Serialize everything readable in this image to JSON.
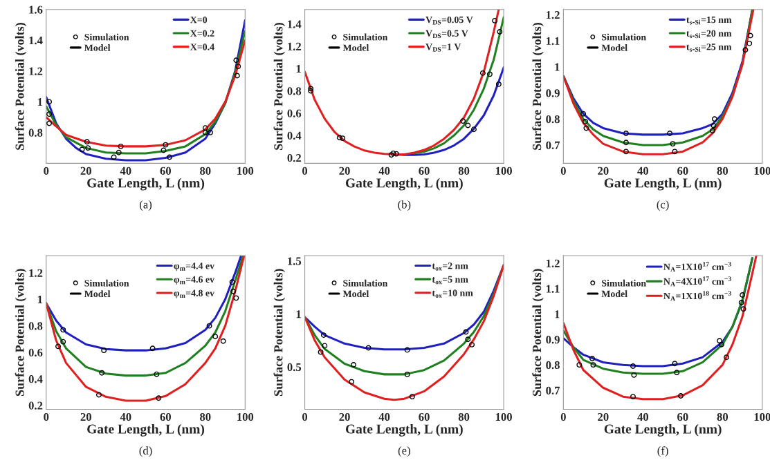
{
  "chart_data": [
    {
      "type": "line",
      "title": "(a)",
      "xlabel": "Gate Length, L (nm)",
      "ylabel": "Surface Potential (volts)",
      "xlim": [
        0,
        100
      ],
      "xticks": [
        0,
        20,
        40,
        60,
        80,
        100
      ],
      "ylim": [
        0.6,
        1.6
      ],
      "yticks": [
        0.8,
        1,
        1.2,
        1.4,
        1.6
      ],
      "grid": false,
      "legend": "top",
      "annotations": [
        "Model"
      ],
      "series": [
        {
          "name": "X=0",
          "marker": "none",
          "color": "#2020c0",
          "x": [
            0,
            5,
            10,
            15,
            20,
            30,
            40,
            50,
            60,
            70,
            80,
            85,
            90,
            95,
            100
          ],
          "values": [
            1.03,
            0.86,
            0.76,
            0.7,
            0.66,
            0.63,
            0.62,
            0.62,
            0.635,
            0.67,
            0.76,
            0.86,
            0.99,
            1.2,
            1.53
          ]
        },
        {
          "name": "X=0.2",
          "marker": "none",
          "color": "#208020",
          "x": [
            0,
            5,
            10,
            20,
            30,
            40,
            50,
            60,
            70,
            80,
            85,
            90,
            95,
            100
          ],
          "values": [
            0.97,
            0.85,
            0.77,
            0.7,
            0.67,
            0.665,
            0.665,
            0.68,
            0.71,
            0.79,
            0.87,
            0.99,
            1.19,
            1.46
          ]
        },
        {
          "name": "X=0.4",
          "marker": "none",
          "color": "#e02020",
          "x": [
            0,
            5,
            10,
            20,
            30,
            40,
            50,
            60,
            70,
            80,
            85,
            90,
            95,
            100
          ],
          "values": [
            0.9,
            0.84,
            0.785,
            0.74,
            0.715,
            0.71,
            0.71,
            0.72,
            0.75,
            0.82,
            0.89,
            1.0,
            1.17,
            1.4
          ]
        },
        {
          "name": "Simulation",
          "type": "scatter",
          "marker": "circle",
          "color": "#000000",
          "x": [
            1.5,
            1.5,
            1.5,
            18,
            21,
            20.5,
            34,
            36.5,
            37.5,
            59,
            60,
            62,
            80,
            80,
            82.5,
            95.5,
            96,
            96.5
          ],
          "values": [
            1.0,
            0.92,
            0.86,
            0.69,
            0.7,
            0.74,
            0.64,
            0.67,
            0.71,
            0.685,
            0.72,
            0.64,
            0.8,
            0.83,
            0.8,
            1.27,
            1.17,
            1.23
          ]
        }
      ]
    },
    {
      "type": "line",
      "title": "(b)",
      "xlabel": "Gate Length, L (nm)",
      "ylabel": "Surface Potential (volts)",
      "xlim": [
        0,
        100
      ],
      "xticks": [
        0,
        20,
        40,
        60,
        80,
        100
      ],
      "ylim": [
        0.15,
        1.53
      ],
      "yticks": [
        0.2,
        0.4,
        0.6,
        0.8,
        1,
        1.2,
        1.4
      ],
      "grid": false,
      "legend": "top",
      "annotations": [
        "Model"
      ],
      "series": [
        {
          "name": "V$_{DS}$=0.05 V",
          "marker": "none",
          "color": "#2020c0",
          "x": [
            45,
            50,
            55,
            60,
            65,
            70,
            75,
            80,
            85,
            90,
            95,
            100
          ],
          "values": [
            0.23,
            0.225,
            0.225,
            0.23,
            0.245,
            0.27,
            0.31,
            0.37,
            0.46,
            0.58,
            0.76,
            1.01
          ]
        },
        {
          "name": "V$_{DS}$=0.5 V",
          "marker": "none",
          "color": "#208020",
          "x": [
            55,
            60,
            65,
            70,
            75,
            80,
            85,
            90,
            95,
            100
          ],
          "values": [
            0.24,
            0.255,
            0.285,
            0.33,
            0.4,
            0.49,
            0.63,
            0.82,
            1.08,
            1.46
          ]
        },
        {
          "name": "V$_{DS}$=1 V",
          "marker": "none",
          "color": "#e02020",
          "x": [
            0,
            5,
            10,
            15,
            20,
            25,
            30,
            35,
            40,
            45,
            50,
            55,
            60,
            65,
            70,
            75,
            80,
            85,
            90,
            95,
            97.5
          ],
          "values": [
            0.97,
            0.72,
            0.55,
            0.43,
            0.35,
            0.3,
            0.265,
            0.245,
            0.235,
            0.23,
            0.23,
            0.245,
            0.27,
            0.31,
            0.37,
            0.45,
            0.56,
            0.73,
            0.97,
            1.33,
            1.53
          ]
        },
        {
          "name": "Simulation",
          "type": "scatter",
          "marker": "circle",
          "color": "#000000",
          "x": [
            3,
            3,
            17.5,
            19,
            43.5,
            44.5,
            46,
            79.5,
            82,
            85,
            89.5,
            93,
            95.5,
            98,
            97.5
          ],
          "values": [
            0.82,
            0.8,
            0.38,
            0.375,
            0.225,
            0.24,
            0.235,
            0.53,
            0.49,
            0.455,
            0.96,
            0.95,
            1.43,
            1.33,
            0.86
          ]
        }
      ]
    },
    {
      "type": "line",
      "title": "(c)",
      "xlabel": "Gate Length, L (nm)",
      "ylabel": "Surface Potential (volts)",
      "xlim": [
        0,
        100
      ],
      "xticks": [
        0,
        20,
        40,
        60,
        80,
        100
      ],
      "ylim": [
        0.63,
        1.22
      ],
      "yticks": [
        0.7,
        0.8,
        0.9,
        1,
        1.1,
        1.2
      ],
      "grid": false,
      "legend": "top",
      "annotations": [
        "Model"
      ],
      "series": [
        {
          "name": "t$_{s-Si}$=15 nm",
          "marker": "none",
          "color": "#2020c0",
          "x": [
            0,
            5,
            10,
            15,
            20,
            30,
            40,
            50,
            60,
            70,
            75,
            80,
            85,
            90,
            95
          ],
          "values": [
            0.965,
            0.88,
            0.82,
            0.785,
            0.765,
            0.745,
            0.74,
            0.74,
            0.745,
            0.765,
            0.78,
            0.82,
            0.9,
            1.02,
            1.22
          ]
        },
        {
          "name": "t$_{s-Si}$=20 nm",
          "marker": "none",
          "color": "#208020",
          "x": [
            0,
            5,
            10,
            15,
            20,
            30,
            40,
            50,
            60,
            70,
            75,
            80,
            85,
            90,
            95
          ],
          "values": [
            0.965,
            0.87,
            0.8,
            0.76,
            0.735,
            0.71,
            0.7,
            0.7,
            0.71,
            0.735,
            0.76,
            0.81,
            0.89,
            1.01,
            1.22
          ]
        },
        {
          "name": "t$_{s-Si}$=25 nm",
          "marker": "none",
          "color": "#e02020",
          "x": [
            0,
            5,
            10,
            15,
            20,
            30,
            40,
            50,
            60,
            70,
            75,
            80,
            85,
            90,
            95.5
          ],
          "values": [
            0.965,
            0.86,
            0.785,
            0.74,
            0.705,
            0.675,
            0.665,
            0.665,
            0.675,
            0.71,
            0.745,
            0.8,
            0.885,
            1.01,
            1.22
          ]
        },
        {
          "name": "Simulation",
          "type": "scatter",
          "marker": "circle",
          "color": "#000000",
          "x": [
            10,
            11,
            11.5,
            31.5,
            31.5,
            31.5,
            53.5,
            55,
            56,
            76,
            75.5,
            75,
            91.5,
            93.5,
            94
          ],
          "values": [
            0.82,
            0.79,
            0.765,
            0.745,
            0.71,
            0.675,
            0.745,
            0.705,
            0.675,
            0.8,
            0.775,
            0.755,
            1.065,
            1.09,
            1.12
          ]
        }
      ]
    },
    {
      "type": "line",
      "title": "(d)",
      "xlabel": "Gate Length, L (nm)",
      "ylabel": "Surface Potential (volts)",
      "xlim": [
        0,
        100
      ],
      "xticks": [
        0,
        20,
        40,
        60,
        80,
        100
      ],
      "ylim": [
        0.17,
        1.33
      ],
      "yticks": [
        0.2,
        0.4,
        0.6,
        0.8,
        1,
        1.2
      ],
      "grid": false,
      "legend": "top",
      "annotations": [
        "Model"
      ],
      "series": [
        {
          "name": "φ$_{m}$=4.4 ev",
          "marker": "none",
          "color": "#2020c0",
          "x": [
            0,
            5,
            10,
            20,
            30,
            40,
            50,
            60,
            70,
            80,
            85,
            90,
            95,
            98
          ],
          "values": [
            0.97,
            0.84,
            0.75,
            0.66,
            0.625,
            0.615,
            0.615,
            0.63,
            0.67,
            0.77,
            0.86,
            1.0,
            1.2,
            1.33
          ]
        },
        {
          "name": "φ$_{m}$=4.6 ev",
          "marker": "none",
          "color": "#208020",
          "x": [
            0,
            5,
            10,
            20,
            30,
            40,
            50,
            60,
            70,
            80,
            85,
            90,
            95,
            99
          ],
          "values": [
            0.97,
            0.76,
            0.63,
            0.49,
            0.44,
            0.425,
            0.425,
            0.445,
            0.52,
            0.65,
            0.75,
            0.91,
            1.14,
            1.33
          ]
        },
        {
          "name": "φ$_{m}$=4.8 ev",
          "marker": "none",
          "color": "#e02020",
          "x": [
            0,
            5,
            10,
            20,
            30,
            40,
            50,
            60,
            70,
            80,
            85,
            90,
            95,
            99.5
          ],
          "values": [
            0.97,
            0.69,
            0.52,
            0.34,
            0.265,
            0.235,
            0.235,
            0.27,
            0.36,
            0.52,
            0.63,
            0.8,
            1.06,
            1.33
          ]
        },
        {
          "name": "Simulation",
          "type": "scatter",
          "marker": "circle",
          "color": "#000000",
          "x": [
            6,
            8.5,
            8.5,
            26.5,
            28,
            29,
            53.5,
            55.5,
            56.5,
            82,
            85,
            89,
            93.5,
            94,
            95.5
          ],
          "values": [
            0.645,
            0.77,
            0.68,
            0.28,
            0.445,
            0.615,
            0.63,
            0.435,
            0.255,
            0.8,
            0.72,
            0.685,
            1.13,
            1.06,
            1.01
          ]
        }
      ]
    },
    {
      "type": "line",
      "title": "(e)",
      "xlabel": "Gate Length, L (nm)",
      "ylabel": "Surface Potential (volts)",
      "xlim": [
        0,
        100
      ],
      "xticks": [
        0,
        20,
        40,
        60,
        80,
        100
      ],
      "ylim": [
        0.1,
        1.55
      ],
      "yticks": [
        0.5,
        1,
        1.5
      ],
      "grid": false,
      "legend": "top",
      "annotations": [
        "Model"
      ],
      "series": [
        {
          "name": "t$_{ox}$=2 nm",
          "marker": "none",
          "color": "#2020c0",
          "x": [
            0,
            5,
            10,
            20,
            30,
            40,
            50,
            60,
            70,
            80,
            85,
            90,
            95,
            100
          ],
          "values": [
            0.97,
            0.88,
            0.8,
            0.72,
            0.68,
            0.665,
            0.665,
            0.68,
            0.72,
            0.82,
            0.9,
            1.02,
            1.22,
            1.46
          ]
        },
        {
          "name": "t$_{ox}$=5 nm",
          "marker": "none",
          "color": "#208020",
          "x": [
            0,
            5,
            10,
            20,
            30,
            40,
            50,
            60,
            70,
            80,
            85,
            90,
            95,
            100
          ],
          "values": [
            0.97,
            0.8,
            0.67,
            0.53,
            0.46,
            0.43,
            0.43,
            0.47,
            0.56,
            0.72,
            0.83,
            0.98,
            1.19,
            1.46
          ]
        },
        {
          "name": "t$_{ox}$=10 nm",
          "marker": "none",
          "color": "#e02020",
          "x": [
            0,
            5,
            10,
            20,
            30,
            40,
            45,
            50,
            60,
            70,
            80,
            85,
            90,
            95,
            100
          ],
          "values": [
            0.97,
            0.75,
            0.59,
            0.38,
            0.26,
            0.2,
            0.19,
            0.2,
            0.27,
            0.41,
            0.62,
            0.76,
            0.93,
            1.17,
            1.46
          ]
        },
        {
          "name": "Simulation",
          "type": "scatter",
          "marker": "circle",
          "color": "#000000",
          "x": [
            8,
            9.5,
            10,
            23.5,
            24.5,
            32,
            51.5,
            51.5,
            54,
            81,
            82,
            84
          ],
          "values": [
            0.64,
            0.8,
            0.7,
            0.36,
            0.52,
            0.68,
            0.66,
            0.43,
            0.22,
            0.83,
            0.76,
            0.71
          ]
        }
      ]
    },
    {
      "type": "line",
      "title": "(f)",
      "xlabel": "Gate Length, L (nm)",
      "ylabel": "Surface Potential (volts)",
      "xlim": [
        0,
        100
      ],
      "xticks": [
        0,
        20,
        40,
        60,
        80,
        100
      ],
      "ylim": [
        0.625,
        1.23
      ],
      "yticks": [
        0.7,
        0.8,
        0.9,
        1,
        1.1,
        1.2
      ],
      "grid": false,
      "legend": "top",
      "annotations": [
        "Model"
      ],
      "series": [
        {
          "name": "N$_{A}$=1X10$^{17}$ cm$^{−3}$",
          "marker": "none",
          "color": "#2020c0",
          "x": [
            0,
            5,
            10,
            20,
            30,
            40,
            50,
            60,
            70,
            80,
            85,
            90,
            95
          ],
          "values": [
            0.905,
            0.87,
            0.84,
            0.81,
            0.8,
            0.795,
            0.795,
            0.805,
            0.83,
            0.89,
            0.95,
            1.05,
            1.22
          ]
        },
        {
          "name": "N$_{A}$=4X10$^{17}$ cm$^{−3}$",
          "marker": "none",
          "color": "#208020",
          "x": [
            0,
            5,
            10,
            20,
            30,
            40,
            50,
            60,
            70,
            80,
            85,
            90,
            95
          ],
          "values": [
            0.935,
            0.87,
            0.82,
            0.785,
            0.77,
            0.765,
            0.765,
            0.775,
            0.81,
            0.88,
            0.95,
            1.055,
            1.22
          ]
        },
        {
          "name": "N$_{A}$=1X10$^{18}$ cm$^{−3}$",
          "marker": "none",
          "color": "#e02020",
          "x": [
            0,
            5,
            10,
            20,
            30,
            40,
            50,
            60,
            70,
            80,
            85,
            90,
            95,
            97
          ],
          "values": [
            0.965,
            0.86,
            0.78,
            0.71,
            0.675,
            0.665,
            0.665,
            0.68,
            0.72,
            0.8,
            0.88,
            0.99,
            1.16,
            1.23
          ]
        },
        {
          "name": "Simulation",
          "type": "scatter",
          "marker": "circle",
          "color": "#000000",
          "x": [
            8,
            14.5,
            15,
            35,
            35.5,
            35,
            56,
            57,
            59,
            78.5,
            79.5,
            82,
            89.5,
            90,
            90.5
          ],
          "values": [
            0.8,
            0.825,
            0.8,
            0.795,
            0.76,
            0.675,
            0.805,
            0.77,
            0.678,
            0.895,
            0.88,
            0.83,
            1.045,
            1.075,
            1.02
          ]
        }
      ]
    }
  ]
}
